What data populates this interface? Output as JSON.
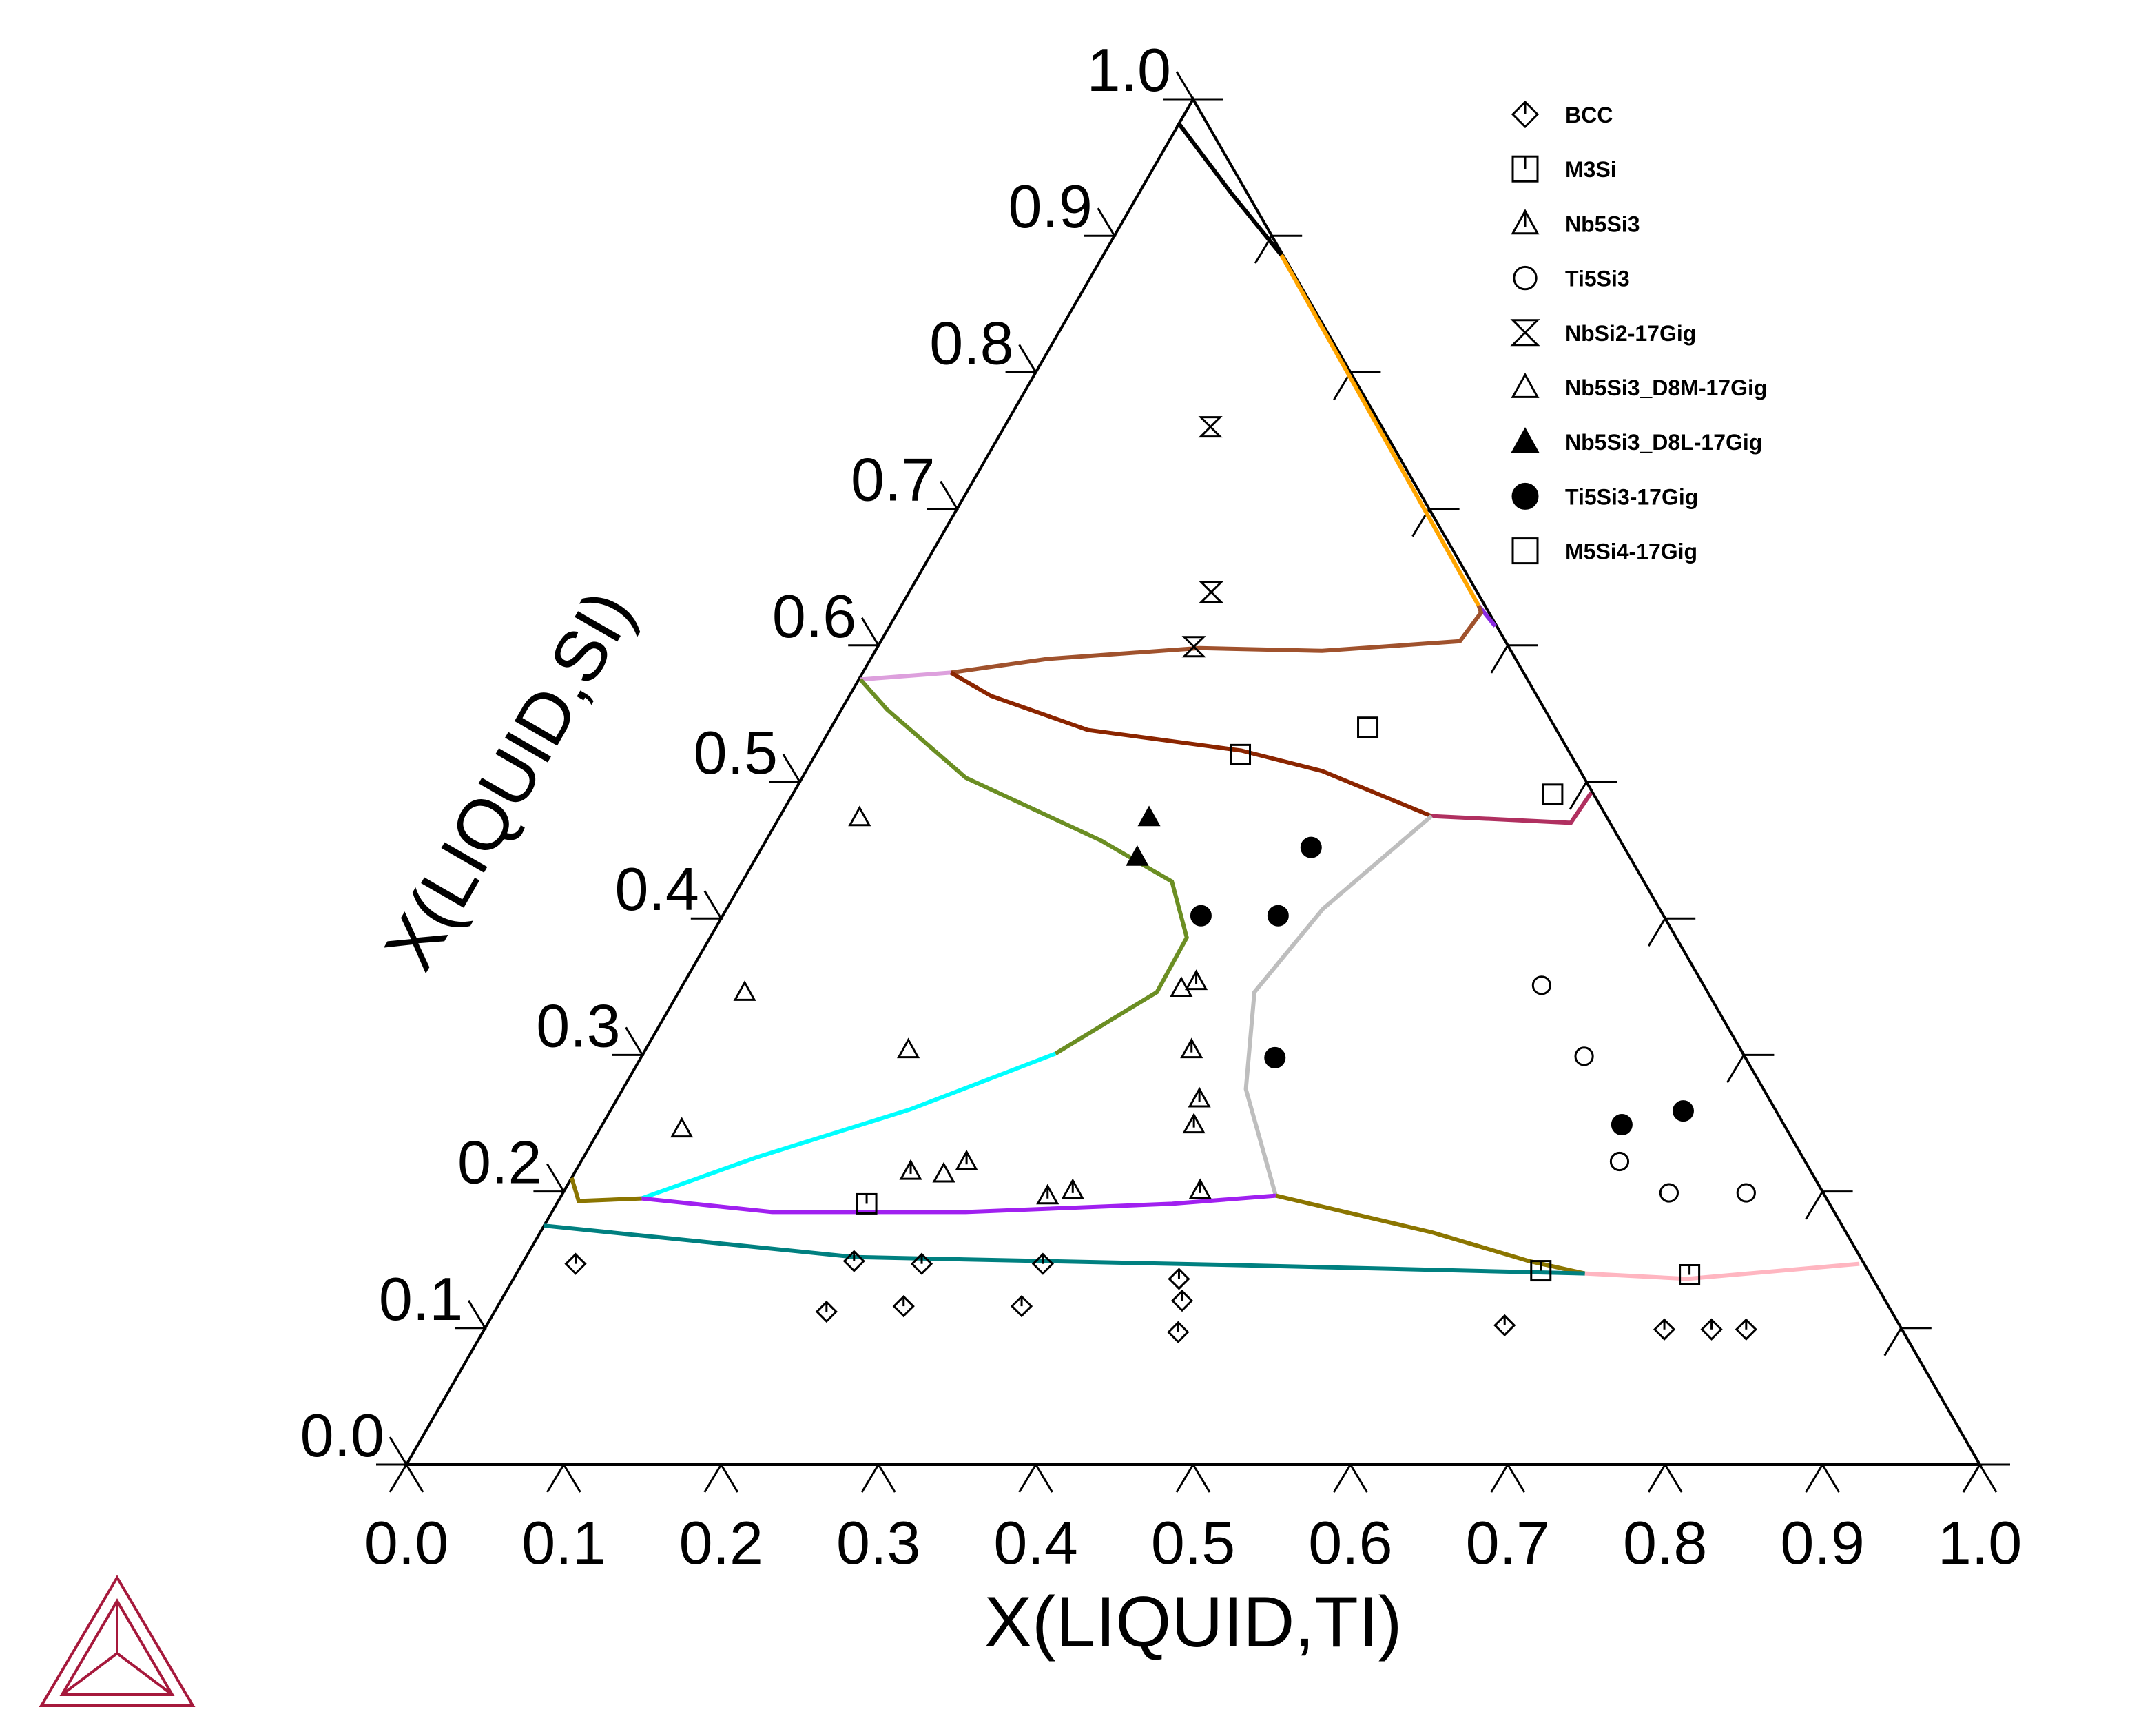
{
  "chart_data": {
    "type": "ternary",
    "xlabel": "X(LIQUID,TI)",
    "ylabel": "X(LIQUID,SI)",
    "xlim": [
      0,
      1
    ],
    "ylim": [
      0,
      1
    ],
    "xticks": [
      {
        "value": 0,
        "label": "0.0"
      },
      0.1,
      0.2,
      0.3,
      0.4,
      0.5,
      0.6,
      0.7,
      0.8,
      0.9,
      {
        "value": 1,
        "label": "1.0"
      }
    ],
    "yticks": [
      {
        "value": 0,
        "label": "0.0"
      },
      0.1,
      0.2,
      0.3,
      0.4,
      0.5,
      0.6,
      0.7,
      0.8,
      0.9,
      {
        "value": 1,
        "label": "1.0"
      }
    ],
    "legend": "upper right",
    "series": [
      {
        "name": "BCC",
        "marker": "diamond-tick",
        "color": "#000000",
        "x": [
          0.034,
          0.211,
          0.21,
          0.258,
          0.254,
          0.333,
          0.331,
          0.423,
          0.433,
          0.442,
          0.647,
          0.75,
          0.78,
          0.802
        ],
        "y": [
          0.147,
          0.112,
          0.149,
          0.116,
          0.147,
          0.116,
          0.147,
          0.136,
          0.12,
          0.097,
          0.102,
          0.099,
          0.099,
          0.099
        ]
      },
      {
        "name": "M3Si",
        "marker": "square-tick",
        "color": "#000000",
        "x": [
          0.197,
          0.65,
          0.746
        ],
        "y": [
          0.191,
          0.142,
          0.139
        ]
      },
      {
        "name": "Nb5Si3",
        "marker": "triangle-tick",
        "color": "#000000",
        "x": [
          0.213,
          0.245,
          0.309,
          0.323,
          0.325,
          0.347,
          0.37,
          0.376,
          0.404
        ],
        "y": [
          0.215,
          0.222,
          0.197,
          0.201,
          0.354,
          0.304,
          0.268,
          0.249,
          0.201
        ]
      },
      {
        "name": "Ti5Si3",
        "marker": "circle",
        "color": "#000000",
        "x": [
          0.546,
          0.599,
          0.66,
          0.703,
          0.752
        ],
        "y": [
          0.351,
          0.299,
          0.222,
          0.199,
          0.199
        ]
      },
      {
        "name": "NbSi2-17Gig",
        "marker": "hourglass",
        "color": "#000000",
        "x": [
          0.131,
          0.192,
          0.201
        ],
        "y": [
          0.76,
          0.639,
          0.599
        ]
      },
      {
        "name": "Nb5Si3_D8M-17Gig",
        "marker": "triangle",
        "color": "#000000",
        "x": [
          0.051,
          0.042,
          0.167,
          0.052,
          0.235,
          0.318
        ],
        "y": [
          0.474,
          0.346,
          0.304,
          0.246,
          0.213,
          0.349
        ]
      },
      {
        "name": "Nb5Si3_D8L-17Gig",
        "marker": "triangle-filled",
        "color": "#000000",
        "x": [
          0.235,
          0.242
        ],
        "y": [
          0.474,
          0.445
        ]
      },
      {
        "name": "Ti5Si3-17Gig",
        "marker": "circle-filled",
        "color": "#000000",
        "x": [
          0.349,
          0.304,
          0.353,
          0.403,
          0.648,
          0.682
        ],
        "y": [
          0.452,
          0.402,
          0.402,
          0.298,
          0.249,
          0.259
        ]
      },
      {
        "name": "M5Si4-17Gig",
        "marker": "square",
        "color": "#000000",
        "x": [
          0.341,
          0.27,
          0.483
        ],
        "y": [
          0.54,
          0.52,
          0.491
        ]
      }
    ],
    "lines": [
      {
        "color": "#000000",
        "x": [
          0.0,
          0.06,
          0.113
        ],
        "y": [
          0.982,
          0.93,
          0.886
        ]
      },
      {
        "color": "#ffa500",
        "x": [
          0.113,
          0.367
        ],
        "y": [
          0.886,
          0.629
        ]
      },
      {
        "color": "#8a2be2",
        "x": [
          0.367,
          0.385
        ],
        "y": [
          0.629,
          0.614
        ]
      },
      {
        "color": "#a0522d",
        "x": [
          0.367,
          0.371,
          0.368,
          0.284,
          0.205,
          0.112,
          0.056
        ],
        "y": [
          0.629,
          0.624,
          0.603,
          0.596,
          0.598,
          0.59,
          0.58
        ]
      },
      {
        "color": "#dda0dd",
        "x": [
          0.056,
          0.001
        ],
        "y": [
          0.58,
          0.575
        ]
      },
      {
        "color": "#8b2500",
        "x": [
          0.056,
          0.09,
          0.164,
          0.269,
          0.328,
          0.414
        ],
        "y": [
          0.58,
          0.563,
          0.538,
          0.523,
          0.508,
          0.475
        ]
      },
      {
        "color": "#b03060",
        "x": [
          0.414,
          0.505,
          0.507
        ],
        "y": [
          0.475,
          0.47,
          0.492
        ]
      },
      {
        "color": "#bebebe",
        "x": [
          0.414,
          0.379,
          0.366,
          0.396,
          0.454
        ],
        "y": [
          0.475,
          0.407,
          0.346,
          0.275,
          0.197
        ]
      },
      {
        "color": "#6b8e23",
        "x": [
          0.001,
          0.029,
          0.104,
          0.213,
          0.273,
          0.303,
          0.304,
          0.262
        ],
        "y": [
          0.575,
          0.553,
          0.503,
          0.457,
          0.427,
          0.386,
          0.346,
          0.301
        ]
      },
      {
        "color": "#00ffff",
        "x": [
          0.262,
          0.19,
          0.11,
          0.052
        ],
        "y": [
          0.301,
          0.26,
          0.225,
          0.195
        ]
      },
      {
        "color": "#a020f0",
        "x": [
          0.052,
          0.14,
          0.263,
          0.391,
          0.454
        ],
        "y": [
          0.195,
          0.185,
          0.185,
          0.191,
          0.197
        ]
      },
      {
        "color": "#8b7500",
        "x": [
          0.0,
          0.013,
          0.052
        ],
        "y": [
          0.21,
          0.193,
          0.195
        ]
      },
      {
        "color": "#8b7500",
        "x": [
          0.454,
          0.567,
          0.639,
          0.679
        ],
        "y": [
          0.197,
          0.17,
          0.149,
          0.14
        ]
      },
      {
        "color": "#008080",
        "x": [
          0.0,
          0.209,
          0.457,
          0.679
        ],
        "y": [
          0.175,
          0.152,
          0.146,
          0.14
        ]
      },
      {
        "color": "#ffb6c1",
        "x": [
          0.679,
          0.746,
          0.85
        ],
        "y": [
          0.14,
          0.136,
          0.147
        ]
      }
    ]
  }
}
